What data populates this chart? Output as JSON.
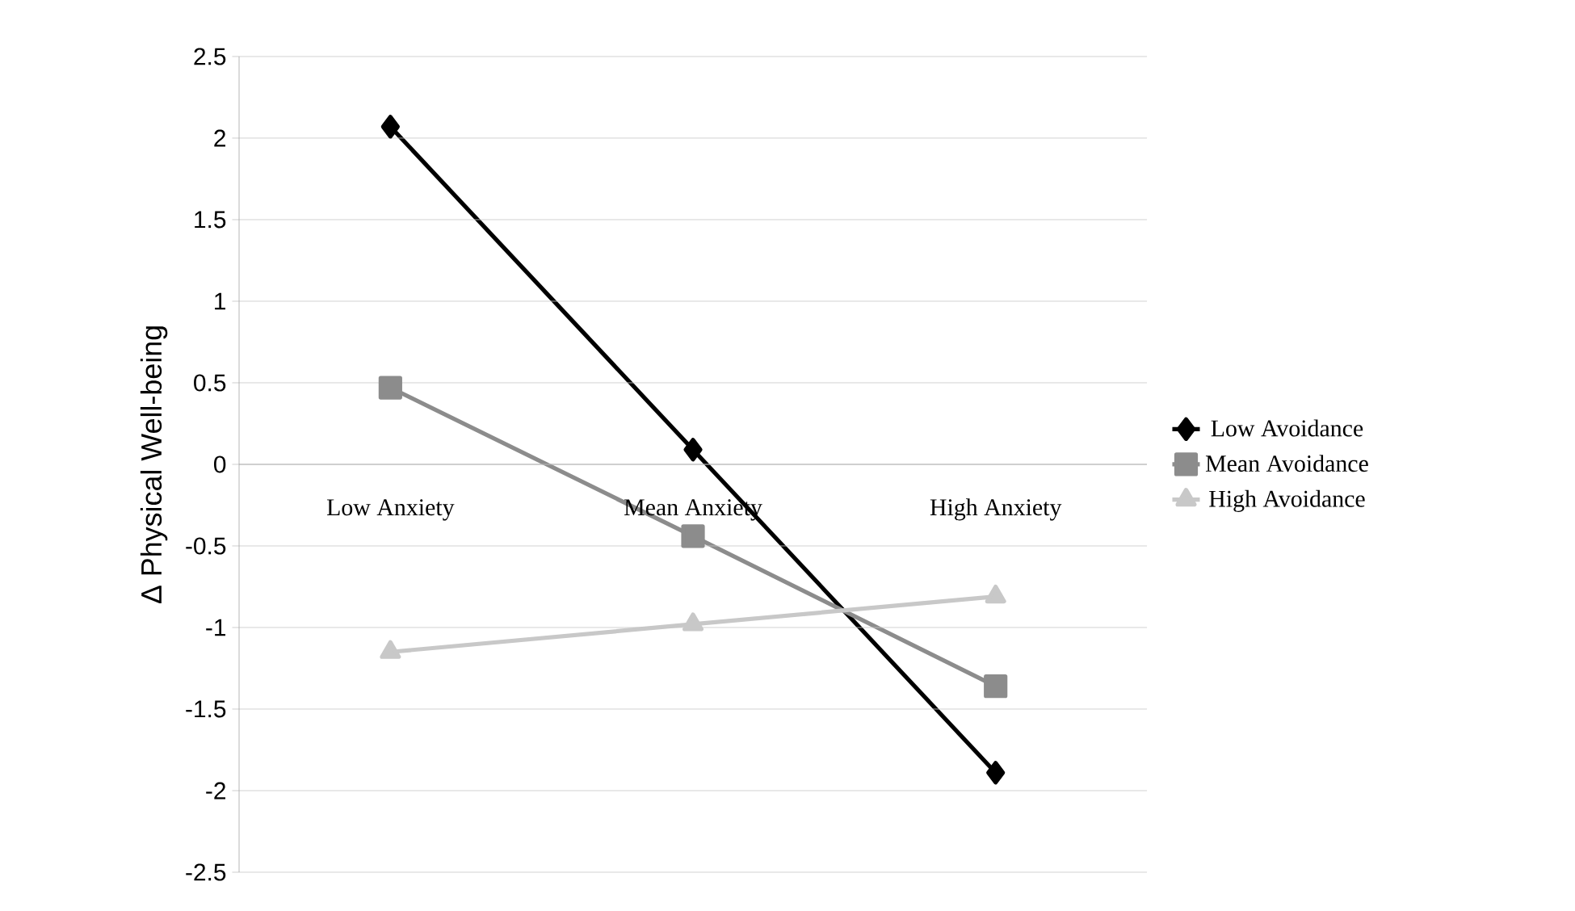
{
  "chart_data": {
    "type": "line",
    "ylabel": "Δ Physical Well-being",
    "categories": [
      "Low Anxiety",
      "Mean Anxiety",
      "High Anxiety"
    ],
    "series": [
      {
        "name": "Low Avoidance",
        "color": "#000000",
        "marker": "diamond",
        "values": [
          2.07,
          0.09,
          -1.89
        ]
      },
      {
        "name": "Mean Avoidance",
        "color": "#8c8c8c",
        "marker": "square",
        "values": [
          0.47,
          -0.44,
          -1.36
        ]
      },
      {
        "name": "High Avoidance",
        "color": "#c8c8c8",
        "marker": "triangle",
        "values": [
          -1.15,
          -0.98,
          -0.81
        ]
      }
    ],
    "ylim": [
      -2.5,
      2.5
    ],
    "yticks": [
      -2.5,
      -2,
      -1.5,
      -1,
      -0.5,
      0,
      0.5,
      1,
      1.5,
      2,
      2.5
    ],
    "grid": "y",
    "legend": "right",
    "line_style": "solid"
  }
}
